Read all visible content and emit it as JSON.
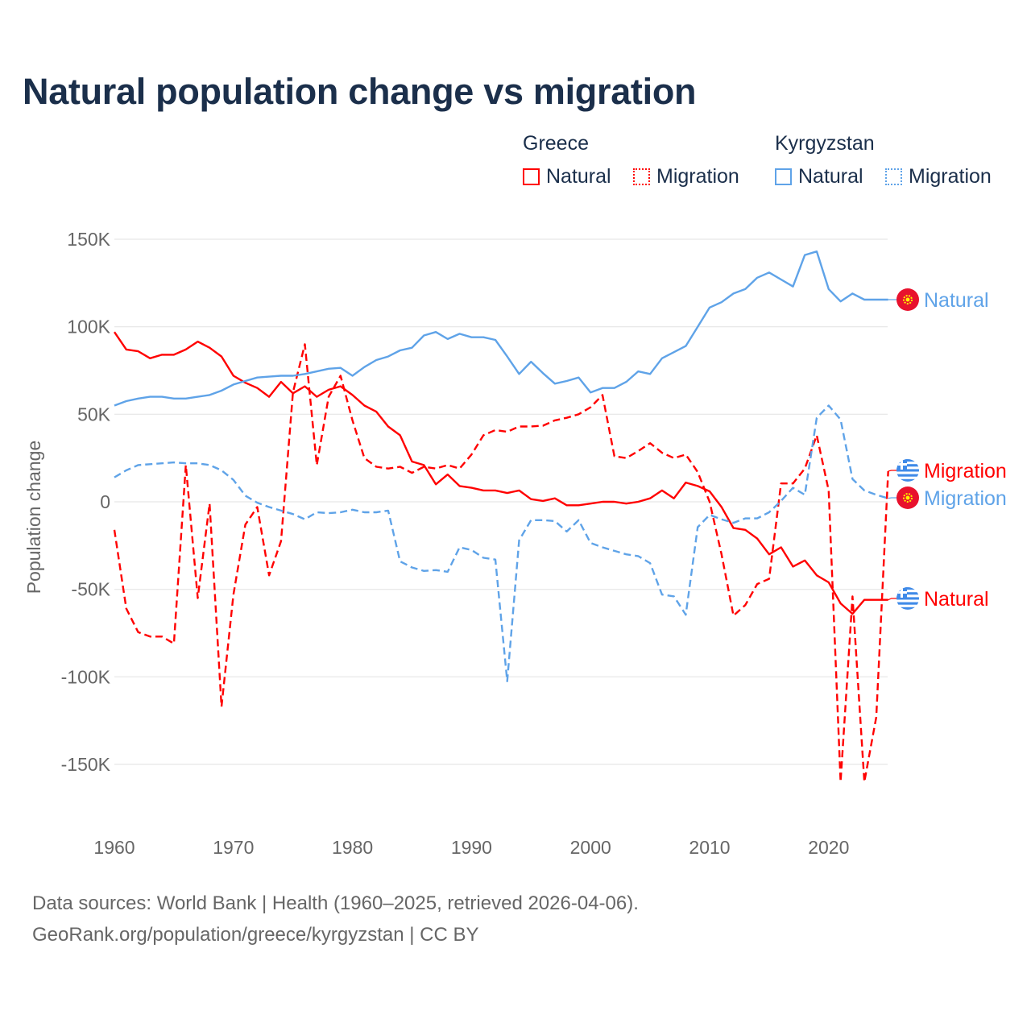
{
  "title": "Natural population change vs migration",
  "legend": {
    "groups": [
      {
        "name": "Greece",
        "items": [
          {
            "label": "Natural",
            "style": "solid"
          },
          {
            "label": "Migration",
            "style": "dotted"
          }
        ],
        "color": "#ff0000"
      },
      {
        "name": "Kyrgyzstan",
        "items": [
          {
            "label": "Natural",
            "style": "solid"
          },
          {
            "label": "Migration",
            "style": "dotted"
          }
        ],
        "color": "#5fa3e8"
      }
    ]
  },
  "footer": {
    "line1": "Data sources: World Bank | Health (1960–2025, retrieved 2026-04-06).",
    "line2": "GeoRank.org/population/greece/kyrgyzstan | CC BY"
  },
  "chart_data": {
    "type": "line",
    "title": "Natural population change vs migration",
    "xlabel": "",
    "ylabel": "Population change",
    "xlim": [
      1960,
      2025
    ],
    "ylim": [
      -165000,
      155000
    ],
    "yticks": [
      150000,
      100000,
      50000,
      0,
      -50000,
      -100000,
      -150000
    ],
    "ytick_labels": [
      "150K",
      "100K",
      "50K",
      "0",
      "-50K",
      "-100K",
      "-150K"
    ],
    "xticks": [
      1960,
      1970,
      1980,
      1990,
      2000,
      2010,
      2020
    ],
    "xtick_labels": [
      "1960",
      "1970",
      "1980",
      "1990",
      "2000",
      "2010",
      "2020"
    ],
    "grid": true,
    "x_start": 1960,
    "series": [
      {
        "name": "Greece Natural",
        "country": "Greece",
        "end_label": "Natural",
        "color": "#ff0000",
        "dashed": false,
        "flag": "greece",
        "values": [
          97000,
          87000,
          86000,
          82000,
          84000,
          84000,
          87000,
          91500,
          88000,
          83000,
          72000,
          68000,
          65000,
          60000,
          68500,
          62000,
          66000,
          60000,
          64000,
          66000,
          61000,
          55000,
          51500,
          43000,
          38000,
          23000,
          21000,
          10000,
          15600,
          9000,
          8000,
          6500,
          6500,
          5000,
          6500,
          1500,
          500,
          2000,
          -2000,
          -2000,
          -1000,
          0,
          0,
          -1000,
          0,
          2000,
          6500,
          2000,
          11000,
          9000,
          6000,
          -3000,
          -15000,
          -16000,
          -21000,
          -30000,
          -26000,
          -37000,
          -33500,
          -42000,
          -46000,
          -58000,
          -64000,
          -56000,
          -56000,
          -56000
        ]
      },
      {
        "name": "Greece Migration",
        "country": "Greece",
        "end_label": "Migration",
        "color": "#ff0000",
        "dashed": true,
        "flag": "greece",
        "values": [
          -16000,
          -61000,
          -74500,
          -77000,
          -77000,
          -81000,
          21000,
          -55000,
          -1000,
          -117000,
          -53000,
          -13000,
          -3000,
          -42000,
          -22500,
          62500,
          90000,
          21000,
          60000,
          72000,
          46500,
          25000,
          20000,
          19000,
          20000,
          16500,
          20000,
          19000,
          21000,
          19000,
          27000,
          38000,
          41000,
          40000,
          43000,
          43000,
          43500,
          46500,
          48000,
          50000,
          54000,
          61000,
          26000,
          25000,
          29000,
          33500,
          28000,
          25000,
          27000,
          17000,
          0,
          -30000,
          -65000,
          -59000,
          -47000,
          -44000,
          10500,
          10500,
          19000,
          38000,
          6500,
          -160000,
          -54000,
          -160000,
          -123000,
          17500
        ]
      },
      {
        "name": "Kyrgyzstan Natural",
        "country": "Kyrgyzstan",
        "end_label": "Natural",
        "color": "#5fa3e8",
        "dashed": false,
        "flag": "kyrgyzstan",
        "values": [
          55000,
          57500,
          59000,
          60000,
          60000,
          59000,
          59000,
          60000,
          61000,
          63500,
          67000,
          69000,
          71000,
          71500,
          72000,
          72000,
          73000,
          74500,
          76000,
          76500,
          72000,
          77000,
          81000,
          83000,
          86500,
          88000,
          95000,
          97000,
          93000,
          96000,
          94000,
          94000,
          92500,
          83000,
          73000,
          80000,
          73500,
          67500,
          69000,
          71000,
          62500,
          65000,
          65000,
          68500,
          74500,
          73000,
          82000,
          85500,
          89000,
          100000,
          111000,
          114000,
          119000,
          121500,
          128000,
          131000,
          127000,
          123000,
          141000,
          143000,
          121500,
          114500,
          119000,
          115500,
          115500,
          115500
        ]
      },
      {
        "name": "Kyrgyzstan Migration",
        "country": "Kyrgyzstan",
        "end_label": "Migration",
        "color": "#5fa3e8",
        "dashed": true,
        "flag": "kyrgyzstan",
        "values": [
          14000,
          18000,
          21000,
          21500,
          22000,
          22500,
          22000,
          22000,
          21000,
          18000,
          12500,
          3500,
          -500,
          -3000,
          -5000,
          -7000,
          -10000,
          -6000,
          -6500,
          -6000,
          -4500,
          -6000,
          -6000,
          -5000,
          -34000,
          -37500,
          -39500,
          -39000,
          -40000,
          -26000,
          -27500,
          -32000,
          -33000,
          -102500,
          -22000,
          -10500,
          -10500,
          -11000,
          -17000,
          -10500,
          -23500,
          -26000,
          -28000,
          -30000,
          -31000,
          -35000,
          -53000,
          -54000,
          -64500,
          -14500,
          -7500,
          -10000,
          -12000,
          -9500,
          -9500,
          -6000,
          500,
          8000,
          4000,
          48000,
          55000,
          47000,
          13000,
          6500,
          4000,
          2000
        ]
      }
    ]
  }
}
